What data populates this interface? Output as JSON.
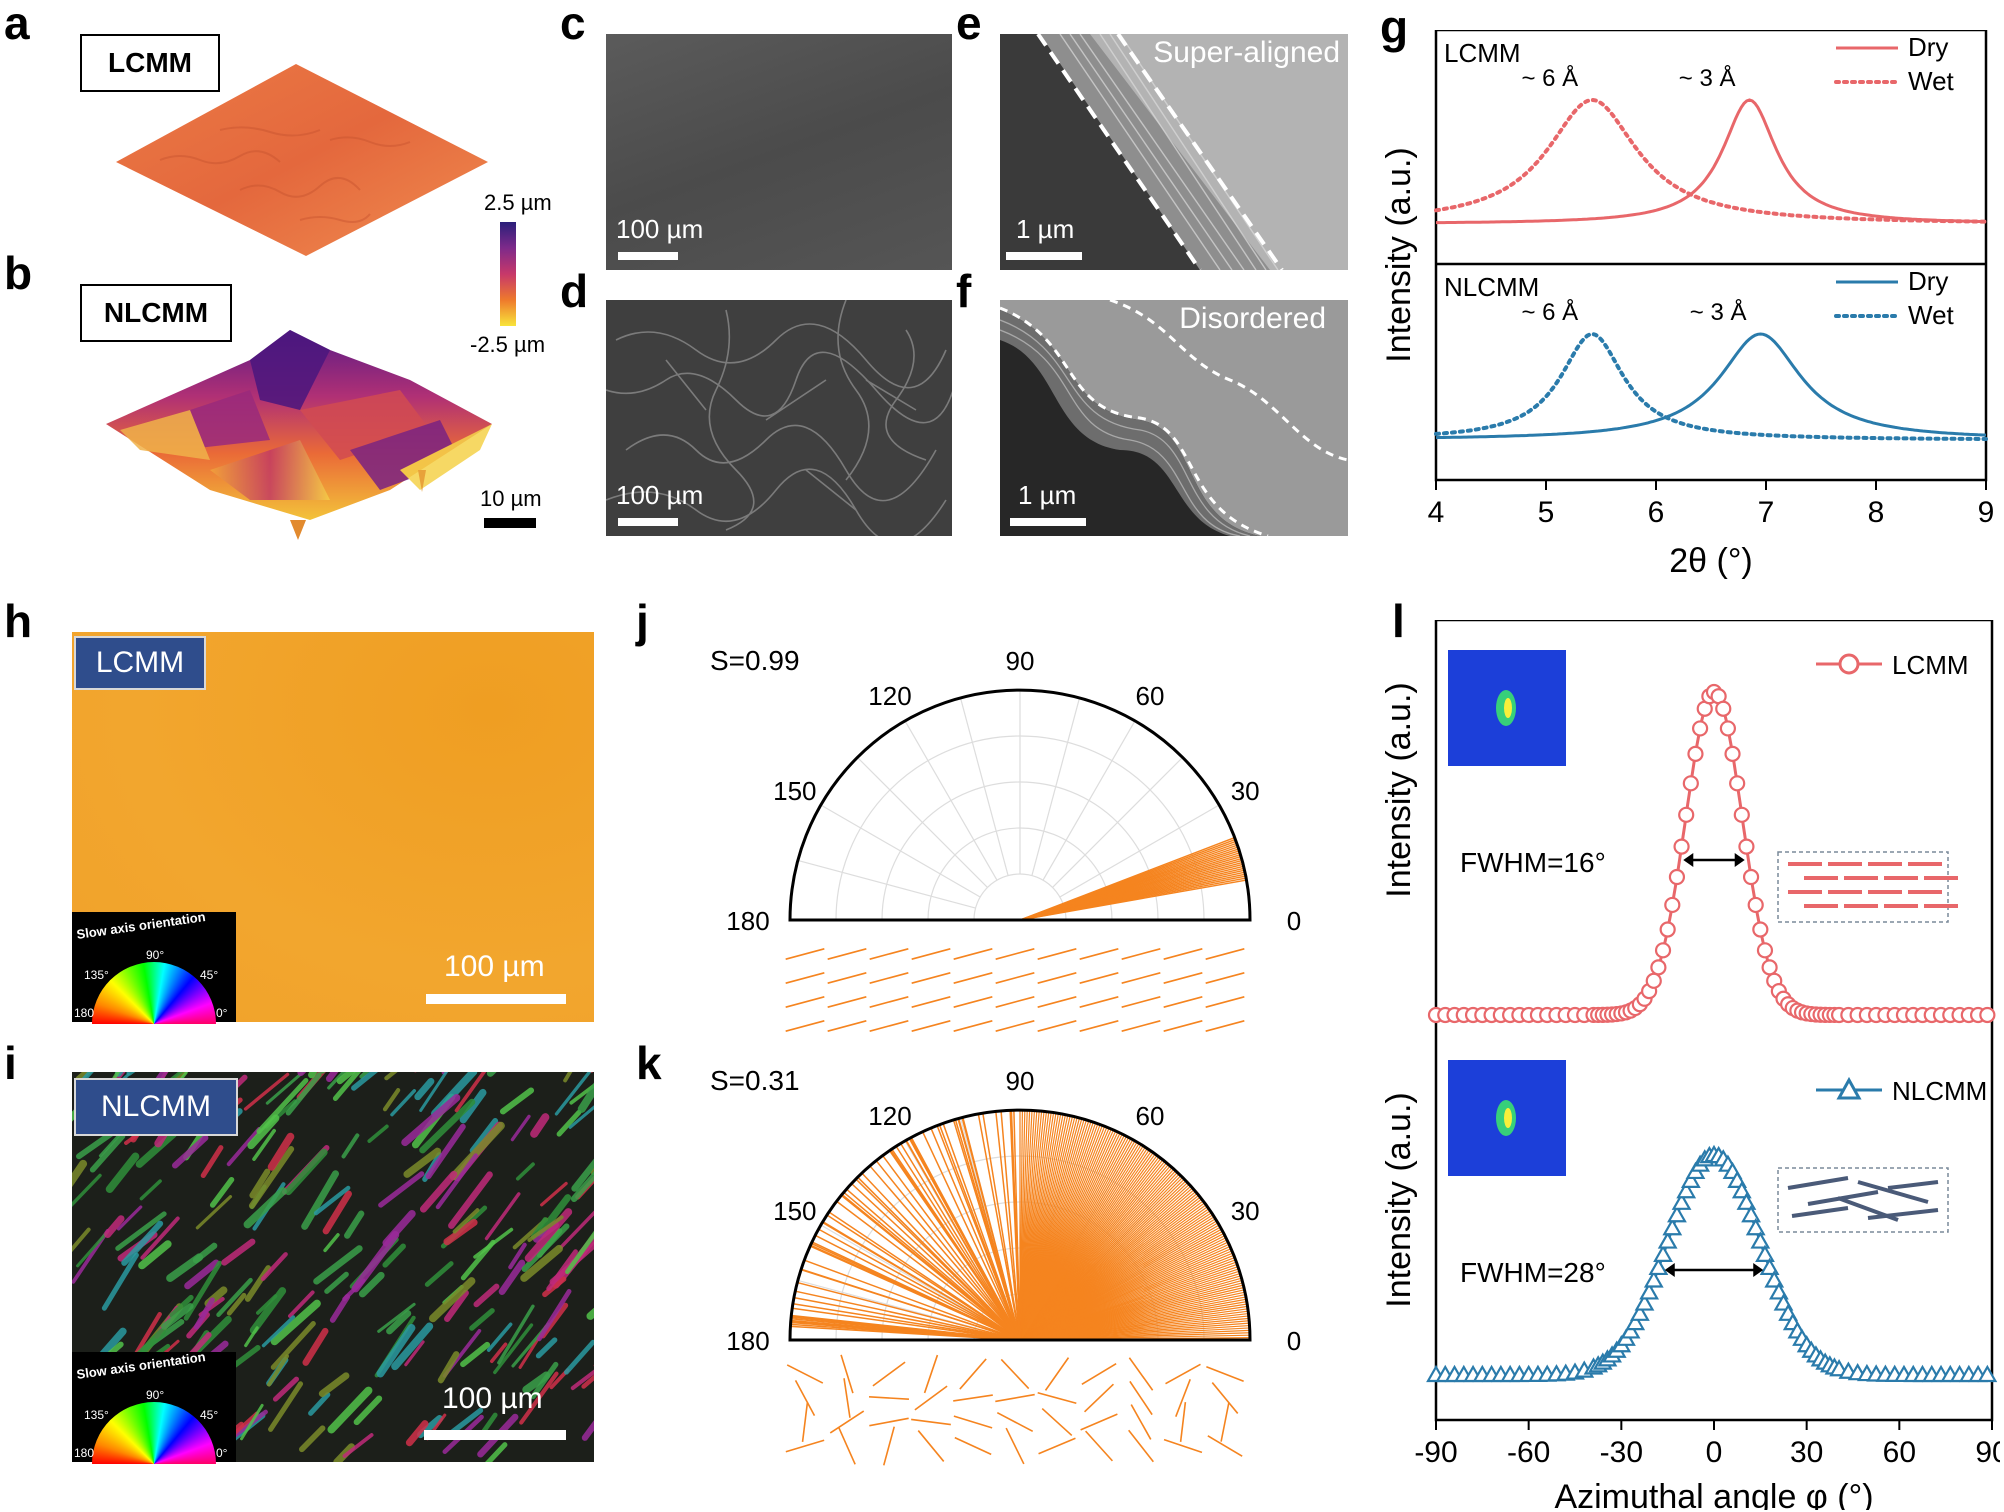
{
  "panel_letters": {
    "a": "a",
    "b": "b",
    "c": "c",
    "d": "d",
    "e": "e",
    "f": "f",
    "g": "g",
    "h": "h",
    "i": "i",
    "j": "j",
    "k": "k",
    "l": "l"
  },
  "afm": {
    "a_label": "LCMM",
    "b_label": "NLCMM",
    "colorbar_max": "2.5 µm",
    "colorbar_min": "-2.5 µm",
    "scale": "10 µm",
    "colors": [
      "#3d1580",
      "#a0237a",
      "#e5582e",
      "#f29a3a",
      "#f4d31e"
    ]
  },
  "sem": {
    "c_scale": "100 µm",
    "d_scale": "100 µm",
    "e_scale": "1 µm",
    "f_scale": "1 µm",
    "e_title": "Super-aligned",
    "f_title": "Disordered"
  },
  "polarized": {
    "h_label": "LCMM",
    "i_label": "NLCMM",
    "scale": "100 µm",
    "wheel_title": "Slow axis orientation",
    "wheel_ticks": [
      "180",
      "135°",
      "90°",
      "45°",
      "0°"
    ]
  },
  "polar": {
    "j_S": "S=0.99",
    "k_S": "S=0.31",
    "angles": [
      "180",
      "150",
      "120",
      "90",
      "60",
      "30",
      "0"
    ],
    "color": "#f5841f"
  },
  "chart_data": [
    {
      "type": "line",
      "panel": "g",
      "xlabel": "2θ (°)",
      "ylabel": "Intensity (a.u.)",
      "xlim": [
        4,
        9
      ],
      "xticks": [
        "4",
        "5",
        "6",
        "7",
        "8",
        "9"
      ],
      "subplots": [
        {
          "title": "LCMM",
          "color": "#e8676a",
          "series": [
            {
              "name": "Dry",
              "style": "solid",
              "peak_x": 6.85,
              "width": 0.3
            },
            {
              "name": "Wet",
              "style": "dotted",
              "peak_x": 5.42,
              "width": 0.5
            }
          ],
          "annotations": [
            "~ 6 Å",
            "~ 3 Å"
          ]
        },
        {
          "title": "NLCMM",
          "color": "#2a7bab",
          "series": [
            {
              "name": "Dry",
              "style": "solid",
              "peak_x": 6.95,
              "width": 0.45
            },
            {
              "name": "Wet",
              "style": "dotted",
              "peak_x": 5.42,
              "width": 0.35
            }
          ],
          "annotations": [
            "~ 6 Å",
            "~ 3 Å"
          ]
        }
      ]
    },
    {
      "type": "line",
      "panel": "l",
      "xlabel": "Azimuthal angle φ  (°)",
      "ylabel": "Intensity (a.u.)",
      "xlim": [
        -90,
        90
      ],
      "xticks": [
        "-90",
        "-60",
        "-30",
        "0",
        "30",
        "60",
        "90"
      ],
      "series": [
        {
          "name": "LCMM",
          "color": "#e8676a",
          "marker": "circle",
          "fwhm": 16
        },
        {
          "name": "NLCMM",
          "color": "#2a7bab",
          "marker": "triangle",
          "fwhm": 28
        }
      ],
      "annotations": [
        "FWHM=16°",
        "FWHM=28°"
      ]
    }
  ]
}
